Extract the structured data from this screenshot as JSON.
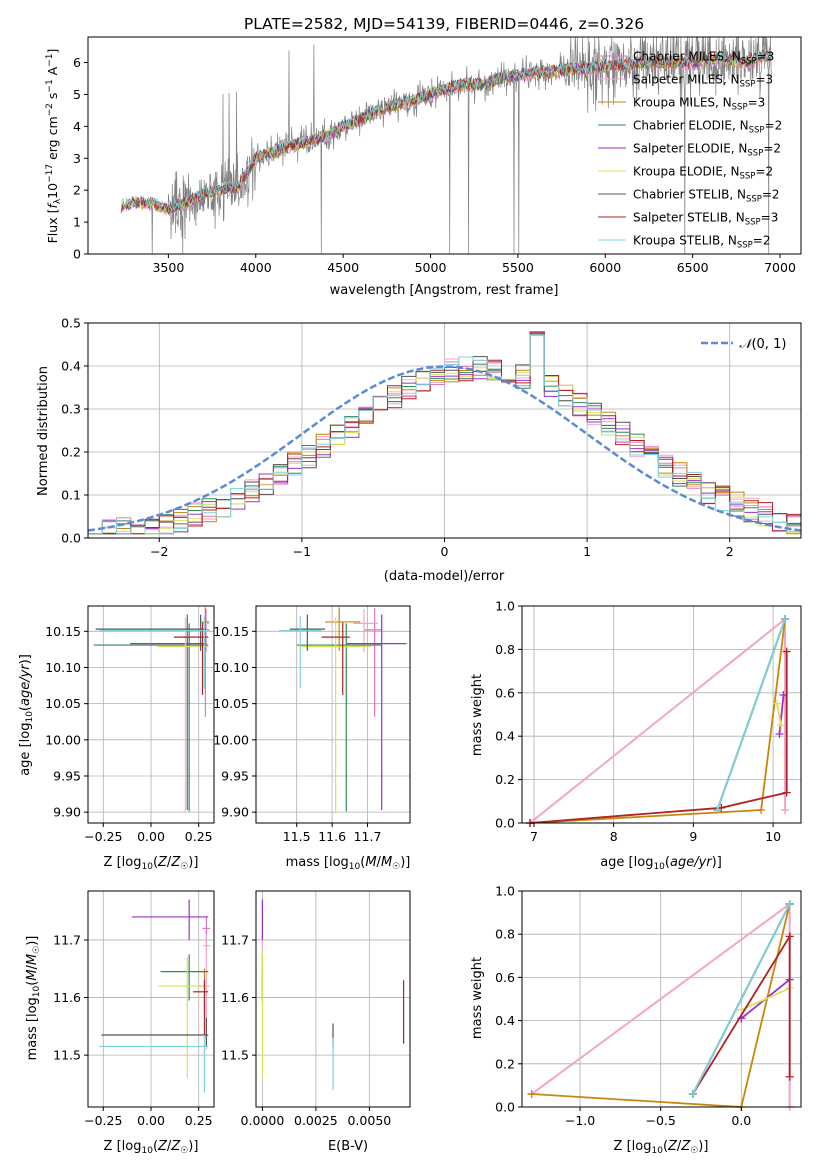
{
  "colors": {
    "chabrier_miles": "#e377c2",
    "salpeter_miles": "#f4a6c8",
    "kroupa_miles": "#c8860d",
    "chabrier_elodie": "#2e8b57",
    "salpeter_elodie": "#9933cc",
    "kroupa_elodie": "#d9e05a",
    "chabrier_stelib": "#555555",
    "salpeter_stelib": "#b22222",
    "kroupa_stelib": "#7fd3dd",
    "gauss": "#5b8bd6",
    "spectrum": "#808080"
  },
  "chart_data": [
    {
      "id": "spectrum",
      "type": "line",
      "title": "PLATE=2582, MJD=54139, FIBERID=0446, z=0.326",
      "xlabel": "wavelength [Angstrom, rest frame]",
      "ylabel": "Flux [fλ10⁻¹⁷ erg cm⁻² s⁻¹ A⁻¹]",
      "xlim": [
        3040,
        7120
      ],
      "ylim": [
        0,
        6.8
      ],
      "xticks": [
        3500,
        4000,
        4500,
        5000,
        5500,
        6000,
        6500,
        7000
      ],
      "yticks": [
        0,
        1,
        2,
        3,
        4,
        5,
        6
      ],
      "grid": false,
      "legend_position": "top-right",
      "legend": [
        "Chabrier MILES, NSSP=3",
        "Salpeter MILES, NSSP=3",
        "Kroupa MILES, NSSP=3",
        "Chabrier ELODIE, NSSP=2",
        "Salpeter ELODIE, NSSP=2",
        "Kroupa ELODIE, NSSP=2",
        "Chabrier STELIB, NSSP=2",
        "Salpeter STELIB, NSSP=3",
        "Kroupa STELIB, NSSP=2"
      ],
      "continuum": [
        [
          3230,
          1.5
        ],
        [
          3300,
          1.6
        ],
        [
          3400,
          1.6
        ],
        [
          3500,
          1.4
        ],
        [
          3600,
          1.6
        ],
        [
          3700,
          1.9
        ],
        [
          3800,
          2.0
        ],
        [
          3900,
          2.1
        ],
        [
          4000,
          3.0
        ],
        [
          4100,
          3.2
        ],
        [
          4200,
          3.4
        ],
        [
          4300,
          3.5
        ],
        [
          4400,
          3.7
        ],
        [
          4500,
          4.0
        ],
        [
          4600,
          4.2
        ],
        [
          4700,
          4.5
        ],
        [
          4800,
          4.7
        ],
        [
          4900,
          4.8
        ],
        [
          5000,
          5.0
        ],
        [
          5100,
          5.2
        ],
        [
          5200,
          5.3
        ],
        [
          5300,
          5.3
        ],
        [
          5400,
          5.5
        ],
        [
          5500,
          5.6
        ],
        [
          5600,
          5.7
        ],
        [
          5700,
          5.7
        ],
        [
          5800,
          5.8
        ],
        [
          5900,
          5.8
        ],
        [
          6000,
          5.9
        ],
        [
          6100,
          5.9
        ],
        [
          6200,
          6.0
        ],
        [
          6300,
          6.0
        ],
        [
          6400,
          6.0
        ],
        [
          6500,
          6.0
        ],
        [
          6600,
          6.1
        ],
        [
          6700,
          6.1
        ],
        [
          6800,
          6.0
        ],
        [
          6900,
          6.2
        ],
        [
          6950,
          6.2
        ]
      ]
    },
    {
      "id": "residuals",
      "type": "histogram",
      "xlabel": "(data-model)/error",
      "ylabel": "Normed distribution",
      "xlim": [
        -2.5,
        2.5
      ],
      "ylim": [
        0,
        0.5
      ],
      "xticks": [
        -2,
        -1,
        0,
        1,
        2
      ],
      "yticks": [
        0.0,
        0.1,
        0.2,
        0.3,
        0.4,
        0.5
      ],
      "grid": true,
      "legend_position": "top-right",
      "legend": [
        "𝒩(0, 1)"
      ],
      "gaussian": {
        "mean": 0,
        "sigma": 1
      }
    },
    {
      "id": "age_vs_Z",
      "type": "errorbar",
      "xlabel": "Z [log10(Z/Z☉)]",
      "ylabel": "age  [log10(age/yr)]",
      "xlim": [
        -0.33,
        0.33
      ],
      "ylim": [
        9.885,
        10.185
      ],
      "xticks": [
        -0.25,
        0.0,
        0.25
      ],
      "yticks": [
        9.9,
        9.95,
        10.0,
        10.05,
        10.1,
        10.15
      ],
      "grid": true,
      "points": [
        {
          "series": "chabrier_miles",
          "x": 0.285,
          "y": 10.152,
          "xerr": [
            0.02,
            0.02
          ],
          "yerr": [
            0.12,
            0.03
          ]
        },
        {
          "series": "salpeter_miles",
          "x": 0.29,
          "y": 10.161,
          "xerr": [
            0.015,
            0.015
          ],
          "yerr": [
            0.04,
            0.02
          ]
        },
        {
          "series": "kroupa_miles",
          "x": 0.285,
          "y": 10.163,
          "xerr": [
            0.02,
            0.02
          ],
          "yerr": [
            0.04,
            0.02
          ]
        },
        {
          "series": "chabrier_elodie",
          "x": 0.2,
          "y": 10.131,
          "xerr": [
            0.5,
            0.1
          ],
          "yerr": [
            0.23,
            0.03
          ]
        },
        {
          "series": "salpeter_elodie",
          "x": 0.19,
          "y": 10.133,
          "xerr": [
            0.3,
            0.1
          ],
          "yerr": [
            0.23,
            0.04
          ]
        },
        {
          "series": "kroupa_elodie",
          "x": 0.18,
          "y": 10.129,
          "xerr": [
            0.15,
            0.12
          ],
          "yerr": [
            0.23,
            0.04
          ]
        },
        {
          "series": "chabrier_stelib",
          "x": 0.26,
          "y": 10.153,
          "xerr": [
            0.55,
            0.03
          ],
          "yerr": [
            0.03,
            0.02
          ]
        },
        {
          "series": "salpeter_stelib",
          "x": 0.27,
          "y": 10.142,
          "xerr": [
            0.15,
            0.03
          ],
          "yerr": [
            0.08,
            0.02
          ]
        },
        {
          "series": "kroupa_stelib",
          "x": 0.28,
          "y": 10.151,
          "xerr": [
            0.55,
            0.03
          ],
          "yerr": [
            0.08,
            0.02
          ]
        }
      ]
    },
    {
      "id": "age_vs_mass",
      "type": "errorbar",
      "xlabel": "mass [log10(M/M☉)]",
      "ylabel": "",
      "xlim": [
        11.385,
        11.82
      ],
      "ylim": [
        9.885,
        10.185
      ],
      "xticks": [
        11.5,
        11.6,
        11.7
      ],
      "yticks": [
        9.9,
        9.95,
        10.0,
        10.05,
        10.1,
        10.15
      ],
      "grid": true,
      "points": [
        {
          "series": "chabrier_miles",
          "x": 11.72,
          "y": 10.152,
          "xerr": [
            0.03,
            0.02
          ],
          "yerr": [
            0.12,
            0.03
          ]
        },
        {
          "series": "salpeter_miles",
          "x": 11.69,
          "y": 10.161,
          "xerr": [
            0.03,
            0.04
          ],
          "yerr": [
            0.04,
            0.02
          ]
        },
        {
          "series": "kroupa_miles",
          "x": 11.62,
          "y": 10.163,
          "xerr": [
            0.04,
            0.06
          ],
          "yerr": [
            0.04,
            0.02
          ]
        },
        {
          "series": "chabrier_elodie",
          "x": 11.64,
          "y": 10.131,
          "xerr": [
            0.14,
            0.1
          ],
          "yerr": [
            0.23,
            0.03
          ]
        },
        {
          "series": "salpeter_elodie",
          "x": 11.74,
          "y": 10.133,
          "xerr": [
            0.1,
            0.07
          ],
          "yerr": [
            0.23,
            0.04
          ]
        },
        {
          "series": "kroupa_elodie",
          "x": 11.61,
          "y": 10.129,
          "xerr": [
            0.1,
            0.1
          ],
          "yerr": [
            0.23,
            0.04
          ]
        },
        {
          "series": "chabrier_stelib",
          "x": 11.53,
          "y": 10.153,
          "xerr": [
            0.05,
            0.05
          ],
          "yerr": [
            0.03,
            0.02
          ]
        },
        {
          "series": "salpeter_stelib",
          "x": 11.63,
          "y": 10.142,
          "xerr": [
            0.06,
            0.02
          ],
          "yerr": [
            0.08,
            0.02
          ]
        },
        {
          "series": "kroupa_stelib",
          "x": 11.51,
          "y": 10.151,
          "xerr": [
            0.06,
            0.06
          ],
          "yerr": [
            0.08,
            0.02
          ]
        }
      ]
    },
    {
      "id": "weight_vs_age",
      "type": "line",
      "xlabel": "age  [log10(age/yr)]",
      "ylabel": "mass weight",
      "xlim": [
        6.85,
        10.35
      ],
      "ylim": [
        0.0,
        1.0
      ],
      "xticks": [
        7,
        8,
        9,
        10
      ],
      "yticks": [
        0.0,
        0.2,
        0.4,
        0.6,
        0.8,
        1.0
      ],
      "grid": true,
      "series": [
        {
          "key": "chabrier_miles",
          "points": [
            [
              6.95,
              0.0
            ],
            [
              10.15,
              0.94
            ],
            [
              10.15,
              0.06
            ]
          ]
        },
        {
          "key": "salpeter_miles",
          "points": [
            [
              6.95,
              0.0
            ],
            [
              10.15,
              0.94
            ],
            [
              10.15,
              0.06
            ]
          ]
        },
        {
          "key": "kroupa_miles",
          "points": [
            [
              6.95,
              0.0
            ],
            [
              9.85,
              0.06
            ],
            [
              10.15,
              0.94
            ]
          ]
        },
        {
          "key": "chabrier_elodie",
          "points": [
            [
              9.3,
              0.06
            ],
            [
              10.15,
              0.94
            ]
          ]
        },
        {
          "key": "salpeter_elodie",
          "points": [
            [
              10.08,
              0.41
            ],
            [
              10.13,
              0.59
            ]
          ]
        },
        {
          "key": "kroupa_elodie",
          "points": [
            [
              10.05,
              0.55
            ],
            [
              10.1,
              0.45
            ]
          ]
        },
        {
          "key": "chabrier_stelib",
          "points": [
            [
              9.3,
              0.06
            ],
            [
              10.15,
              0.94
            ]
          ]
        },
        {
          "key": "salpeter_stelib",
          "points": [
            [
              6.95,
              0.0
            ],
            [
              9.35,
              0.07
            ],
            [
              10.17,
              0.14
            ],
            [
              10.17,
              0.79
            ]
          ]
        },
        {
          "key": "kroupa_stelib",
          "points": [
            [
              9.3,
              0.06
            ],
            [
              10.15,
              0.94
            ]
          ]
        }
      ]
    },
    {
      "id": "mass_vs_Z",
      "type": "errorbar",
      "xlabel": "Z [log10(Z/Z☉)]",
      "ylabel": "mass [log10(M/M☉)]",
      "xlim": [
        -0.33,
        0.33
      ],
      "ylim": [
        11.41,
        11.785
      ],
      "xticks": [
        -0.25,
        0.0,
        0.25
      ],
      "yticks": [
        11.5,
        11.6,
        11.7
      ],
      "grid": true,
      "points": [
        {
          "series": "chabrier_miles",
          "x": 0.29,
          "y": 11.72,
          "xerr": [
            0.02,
            0.02
          ],
          "yerr": [
            0.03,
            0.02
          ]
        },
        {
          "series": "salpeter_miles",
          "x": 0.29,
          "y": 11.69,
          "xerr": [
            0.02,
            0.02
          ],
          "yerr": [
            0.18,
            0.02
          ]
        },
        {
          "series": "kroupa_miles",
          "x": 0.28,
          "y": 11.62,
          "xerr": [
            0.03,
            0.02
          ],
          "yerr": [
            0.05,
            0.03
          ]
        },
        {
          "series": "chabrier_elodie",
          "x": 0.2,
          "y": 11.645,
          "xerr": [
            0.15,
            0.1
          ],
          "yerr": [
            0.05,
            0.03
          ]
        },
        {
          "series": "salpeter_elodie",
          "x": 0.2,
          "y": 11.74,
          "xerr": [
            0.3,
            0.1
          ],
          "yerr": [
            0.04,
            0.03
          ]
        },
        {
          "series": "kroupa_elodie",
          "x": 0.19,
          "y": 11.62,
          "xerr": [
            0.15,
            0.12
          ],
          "yerr": [
            0.16,
            0.05
          ]
        },
        {
          "series": "chabrier_stelib",
          "x": 0.29,
          "y": 11.535,
          "xerr": [
            0.55,
            0.01
          ],
          "yerr": [
            0.02,
            0.03
          ]
        },
        {
          "series": "salpeter_stelib",
          "x": 0.28,
          "y": 11.61,
          "xerr": [
            0.06,
            0.02
          ],
          "yerr": [
            0.08,
            0.02
          ]
        },
        {
          "series": "kroupa_stelib",
          "x": 0.28,
          "y": 11.515,
          "xerr": [
            0.55,
            0.02
          ],
          "yerr": [
            0.08,
            0.02
          ]
        }
      ]
    },
    {
      "id": "mass_vs_ebv",
      "type": "errorbar",
      "xlabel": "E(B-V)",
      "ylabel": "",
      "xlim": [
        -0.0003,
        0.0069
      ],
      "ylim": [
        11.41,
        11.785
      ],
      "xticks": [
        0.0,
        0.0025,
        0.005
      ],
      "xtick_labels": [
        "0.0000",
        "0.0025",
        "0.0050"
      ],
      "yticks": [
        11.5,
        11.6,
        11.7
      ],
      "grid": true,
      "points": [
        {
          "series": "chabrier_miles",
          "x": 0.0,
          "y": 11.72,
          "xerr": [
            0,
            0
          ],
          "yerr": [
            0.03,
            0.05
          ]
        },
        {
          "series": "salpeter_miles",
          "x": 0.0,
          "y": 11.69,
          "xerr": [
            0,
            0
          ],
          "yerr": [
            0.03,
            0.02
          ]
        },
        {
          "series": "kroupa_miles",
          "x": 0.0,
          "y": 11.62,
          "xerr": [
            0,
            0
          ],
          "yerr": [
            0.03,
            0.03
          ]
        },
        {
          "series": "chabrier_elodie",
          "x": 0.0,
          "y": 11.645,
          "xerr": [
            0,
            0
          ],
          "yerr": [
            0.05,
            0.03
          ]
        },
        {
          "series": "salpeter_elodie",
          "x": 0.0,
          "y": 11.74,
          "xerr": [
            0,
            0
          ],
          "yerr": [
            0.04,
            0.03
          ]
        },
        {
          "series": "kroupa_elodie",
          "x": 0.0,
          "y": 11.6,
          "xerr": [
            0,
            0
          ],
          "yerr": [
            0.14,
            0.08
          ]
        },
        {
          "series": "chabrier_stelib",
          "x": 0.0033,
          "y": 11.535,
          "xerr": [
            0,
            0
          ],
          "yerr": [
            0.02,
            0.02
          ]
        },
        {
          "series": "salpeter_stelib",
          "x": 0.0066,
          "y": 11.57,
          "xerr": [
            0,
            0
          ],
          "yerr": [
            0.05,
            0.06
          ]
        },
        {
          "series": "kroupa_stelib",
          "x": 0.0033,
          "y": 11.49,
          "xerr": [
            0,
            0
          ],
          "yerr": [
            0.05,
            0.04
          ]
        }
      ]
    },
    {
      "id": "weight_vs_Z",
      "type": "line",
      "xlabel": "Z [log10(Z/Z☉)]",
      "ylabel": "mass weight",
      "xlim": [
        -1.36,
        0.37
      ],
      "ylim": [
        0.0,
        1.0
      ],
      "xticks": [
        -1.0,
        -0.5,
        0.0
      ],
      "yticks": [
        0.0,
        0.2,
        0.4,
        0.6,
        0.8,
        1.0
      ],
      "grid": true,
      "series": [
        {
          "key": "chabrier_miles",
          "points": [
            [
              -1.3,
              0.06
            ],
            [
              0.3,
              0.94
            ],
            [
              0.3,
              0.0
            ]
          ]
        },
        {
          "key": "salpeter_miles",
          "points": [
            [
              -1.3,
              0.06
            ],
            [
              0.3,
              0.94
            ],
            [
              0.3,
              0.0
            ]
          ]
        },
        {
          "key": "kroupa_miles",
          "points": [
            [
              -1.3,
              0.06
            ],
            [
              0.0,
              0.0
            ],
            [
              0.3,
              0.94
            ]
          ]
        },
        {
          "key": "chabrier_elodie",
          "points": [
            [
              -0.3,
              0.06
            ],
            [
              0.3,
              0.94
            ]
          ]
        },
        {
          "key": "salpeter_elodie",
          "points": [
            [
              0.0,
              0.41
            ],
            [
              0.3,
              0.59
            ]
          ]
        },
        {
          "key": "kroupa_elodie",
          "points": [
            [
              0.0,
              0.45
            ],
            [
              0.3,
              0.55
            ]
          ]
        },
        {
          "key": "chabrier_stelib",
          "points": [
            [
              -0.3,
              0.06
            ],
            [
              0.3,
              0.94
            ]
          ]
        },
        {
          "key": "salpeter_stelib",
          "points": [
            [
              -0.3,
              0.06
            ],
            [
              0.3,
              0.79
            ],
            [
              0.3,
              0.14
            ]
          ]
        },
        {
          "key": "kroupa_stelib",
          "points": [
            [
              -0.3,
              0.06
            ],
            [
              0.3,
              0.94
            ]
          ]
        }
      ]
    }
  ]
}
